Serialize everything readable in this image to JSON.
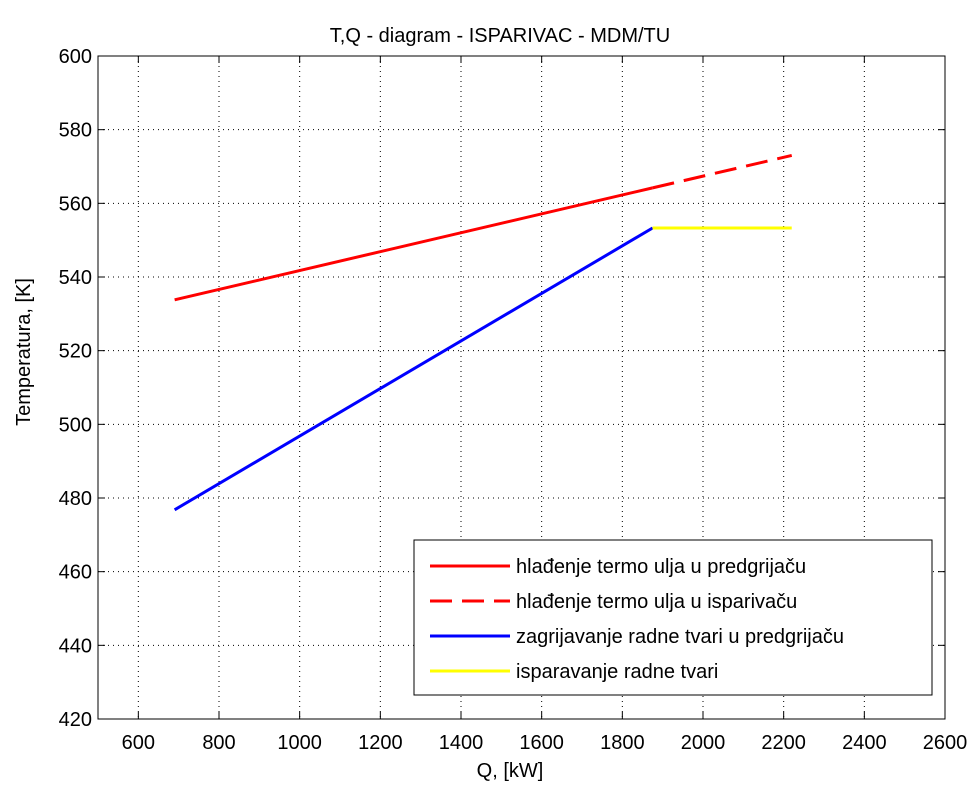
{
  "chart_data": {
    "type": "line",
    "title": "T,Q - diagram - ISPARIVAC - MDM/TU",
    "xlabel": "Q, [kW]",
    "ylabel": "Temperatura, [K]",
    "xlim": [
      500,
      2600
    ],
    "ylim": [
      420,
      600
    ],
    "xticks": [
      600,
      800,
      1000,
      1200,
      1400,
      1600,
      1800,
      2000,
      2200,
      2400,
      2600
    ],
    "yticks": [
      420,
      440,
      460,
      480,
      500,
      520,
      540,
      560,
      580,
      600
    ],
    "grid": true,
    "legend_position": "bottom-right",
    "series": [
      {
        "name": "hlađenje termo ulja u predgrijaču",
        "color": "#ff0000",
        "style": "solid",
        "x": [
          690,
          1875
        ],
        "y": [
          533.8,
          564.2
        ]
      },
      {
        "name": "hlađenje termo ulja u isparivaču",
        "color": "#ff0000",
        "style": "dashed",
        "x": [
          1875,
          2220
        ],
        "y": [
          564.2,
          573.0
        ]
      },
      {
        "name": "zagrijavanje radne tvari u predgrijaču",
        "color": "#0000ff",
        "style": "solid",
        "x": [
          690,
          1875
        ],
        "y": [
          476.8,
          553.3
        ]
      },
      {
        "name": "isparavanje radne tvari",
        "color": "#ffff00",
        "style": "solid",
        "x": [
          1875,
          2220
        ],
        "y": [
          553.3,
          553.3
        ]
      }
    ]
  }
}
